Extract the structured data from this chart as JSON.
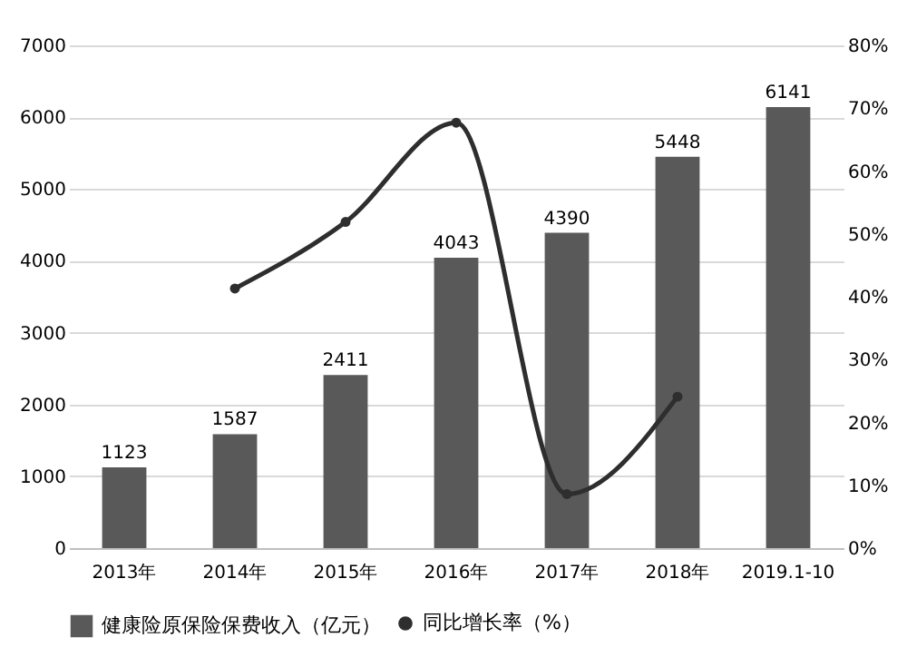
{
  "chart_data": {
    "type": "bar",
    "categories": [
      "2013年",
      "2014年",
      "2015年",
      "2016年",
      "2017年",
      "2018年",
      "2019.1-10"
    ],
    "series": [
      {
        "name": "健康险原保险保费收入（亿元）",
        "color": "#595959",
        "values": [
          1123,
          1587,
          2411,
          4043,
          4390,
          5448,
          6141
        ],
        "value_labels": [
          "1123",
          "1587",
          "2411",
          "4043",
          "4390",
          "5448",
          "6141"
        ]
      },
      {
        "name": "同比增长率（%）",
        "type": "line",
        "axis": "y2",
        "color": "#2e2e2e",
        "marker": "circle",
        "values": [
          null,
          41.3,
          51.9,
          67.7,
          8.6,
          24.1,
          null
        ]
      }
    ],
    "ylim": [
      0,
      7000
    ],
    "yticks": [
      0,
      1000,
      2000,
      3000,
      4000,
      5000,
      6000,
      7000
    ],
    "y2lim": [
      0,
      80
    ],
    "y2ticks": [
      {
        "value": 0,
        "label": "0%"
      },
      {
        "value": 10,
        "label": "10%"
      },
      {
        "value": 20,
        "label": "20%"
      },
      {
        "value": 30,
        "label": "30%"
      },
      {
        "value": 40,
        "label": "40%"
      },
      {
        "value": 50,
        "label": "50%"
      },
      {
        "value": 60,
        "label": "60%"
      },
      {
        "value": 70,
        "label": "70%"
      },
      {
        "value": 80,
        "label": "80%"
      }
    ],
    "grid": "y",
    "legend": "bottom"
  }
}
